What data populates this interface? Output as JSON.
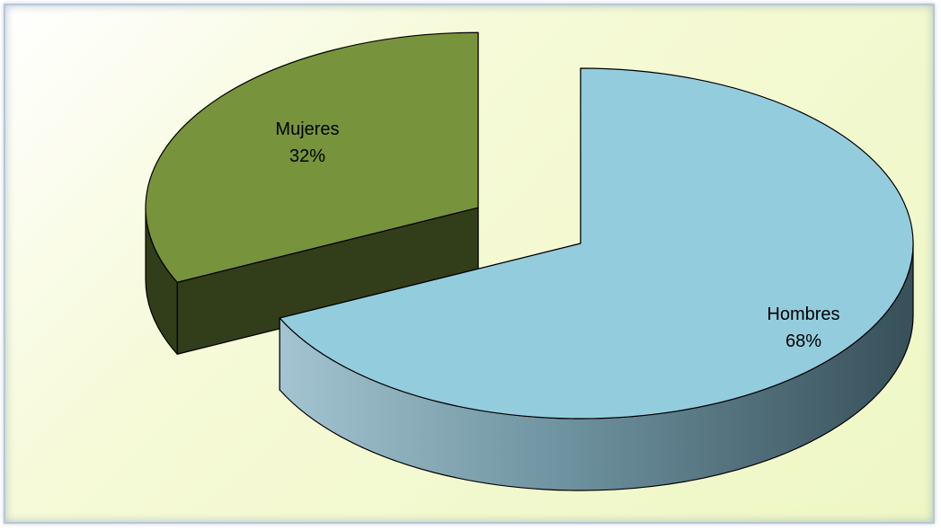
{
  "chart_data": {
    "type": "pie",
    "style": "3d-exploded",
    "slices": [
      {
        "category": "Mujeres",
        "value": 32,
        "value_label": "32%",
        "color": "#77933c"
      },
      {
        "category": "Hombres",
        "value": 68,
        "value_label": "68%",
        "color": "#93cddd"
      }
    ],
    "legend": "none",
    "title": ""
  }
}
